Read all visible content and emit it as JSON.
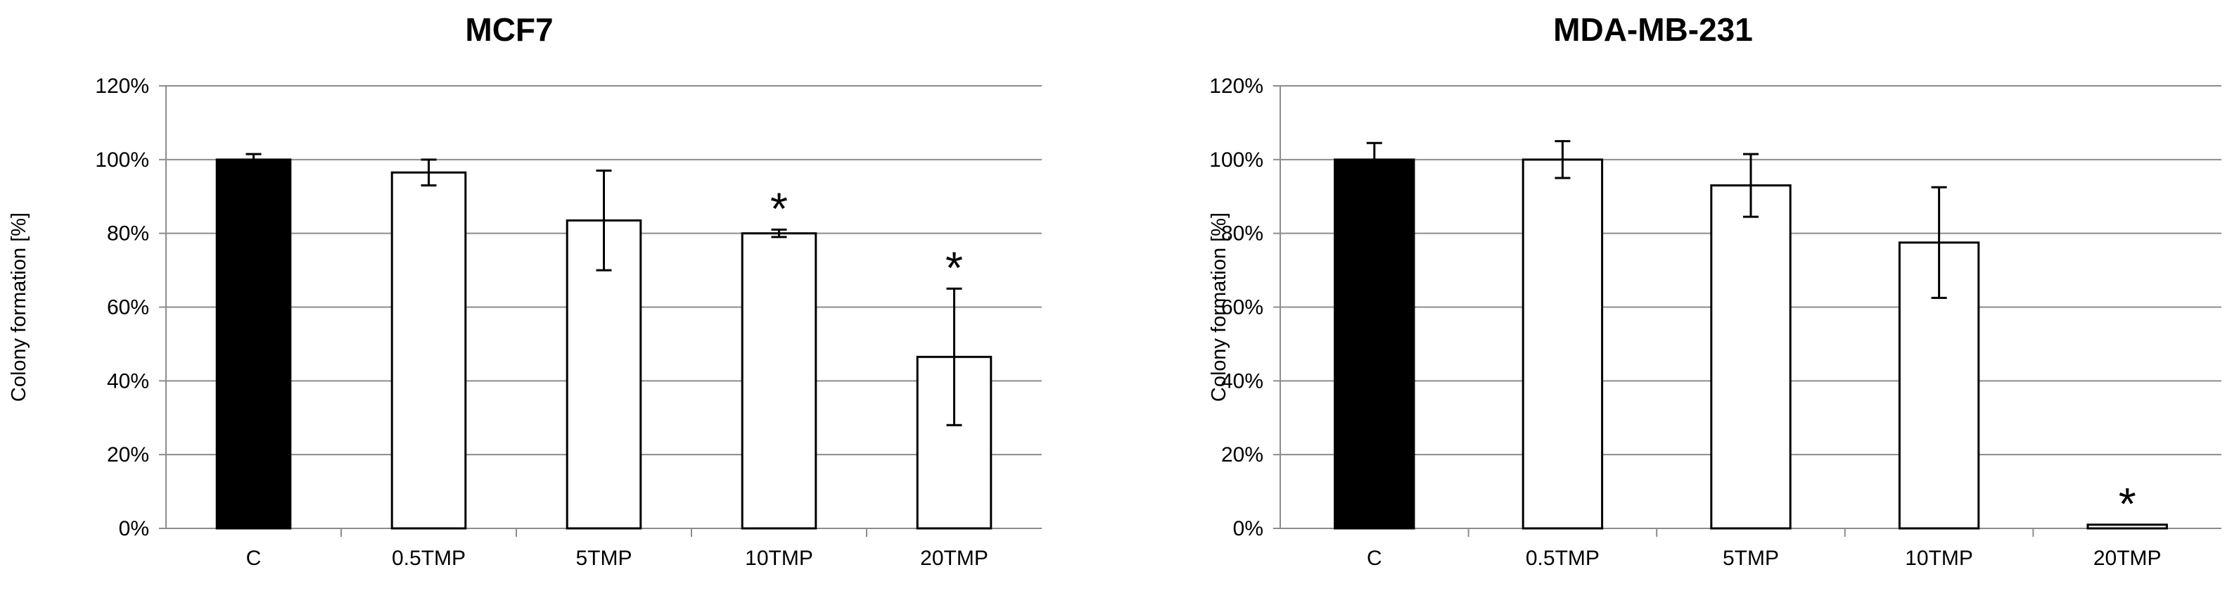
{
  "chart_data": [
    {
      "type": "bar",
      "title": "MCF7",
      "xlabel": "",
      "ylabel": "Colony formation [%]",
      "ylim": [
        0,
        120
      ],
      "yticks": [
        "0%",
        "20%",
        "40%",
        "60%",
        "80%",
        "100%",
        "120%"
      ],
      "grid": true,
      "categories": [
        "C",
        "0.5TMP",
        "5TMP",
        "10TMP",
        "20TMP"
      ],
      "values": [
        100,
        96.5,
        83.5,
        80,
        46.5
      ],
      "errors": [
        1.5,
        3.5,
        13.5,
        1,
        18.5
      ],
      "significant": [
        false,
        false,
        false,
        true,
        true
      ],
      "annotation": "*",
      "colors": [
        "#000000",
        "#ffffff",
        "#ffffff",
        "#ffffff",
        "#ffffff"
      ]
    },
    {
      "type": "bar",
      "title": "MDA-MB-231",
      "xlabel": "",
      "ylabel": "Colony formation [%]",
      "ylim": [
        0,
        120
      ],
      "yticks": [
        "0%",
        "20%",
        "40%",
        "60%",
        "80%",
        "100%",
        "120%"
      ],
      "grid": true,
      "categories": [
        "C",
        "0.5TMP",
        "5TMP",
        "10TMP",
        "20TMP"
      ],
      "values": [
        100,
        100,
        93,
        77.5,
        1
      ],
      "errors": [
        4.5,
        5,
        8.5,
        15,
        0
      ],
      "significant": [
        false,
        false,
        false,
        false,
        true
      ],
      "annotation": "*",
      "colors": [
        "#000000",
        "#ffffff",
        "#ffffff",
        "#ffffff",
        "#ffffff"
      ]
    }
  ]
}
